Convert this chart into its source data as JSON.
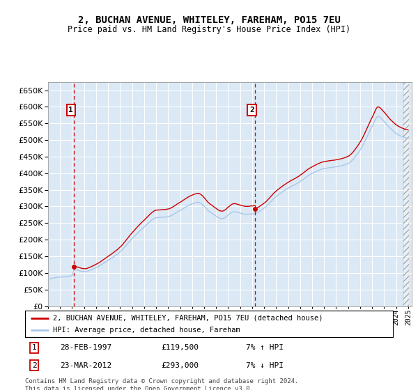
{
  "title": "2, BUCHAN AVENUE, WHITELEY, FAREHAM, PO15 7EU",
  "subtitle": "Price paid vs. HM Land Registry's House Price Index (HPI)",
  "legend_line1": "2, BUCHAN AVENUE, WHITELEY, FAREHAM, PO15 7EU (detached house)",
  "legend_line2": "HPI: Average price, detached house, Fareham",
  "annotation1_date": "28-FEB-1997",
  "annotation1_price": "£119,500",
  "annotation1_hpi": "7% ↑ HPI",
  "annotation2_date": "23-MAR-2012",
  "annotation2_price": "£293,000",
  "annotation2_hpi": "7% ↓ HPI",
  "footer": "Contains HM Land Registry data © Crown copyright and database right 2024.\nThis data is licensed under the Open Government Licence v3.0.",
  "hpi_color": "#a8c8e8",
  "price_color": "#cc0000",
  "annotation_color": "#cc0000",
  "bg_color": "#dbe8f5",
  "grid_color": "#ffffff",
  "ylim": [
    0,
    675000
  ],
  "yticks": [
    0,
    50000,
    100000,
    150000,
    200000,
    250000,
    300000,
    350000,
    400000,
    450000,
    500000,
    550000,
    600000,
    650000
  ],
  "sale1_year": 1997.15,
  "sale1_price": 119500,
  "sale2_year": 2012.22,
  "sale2_price": 293000,
  "xlim_start": 1995,
  "xlim_end": 2025.3
}
